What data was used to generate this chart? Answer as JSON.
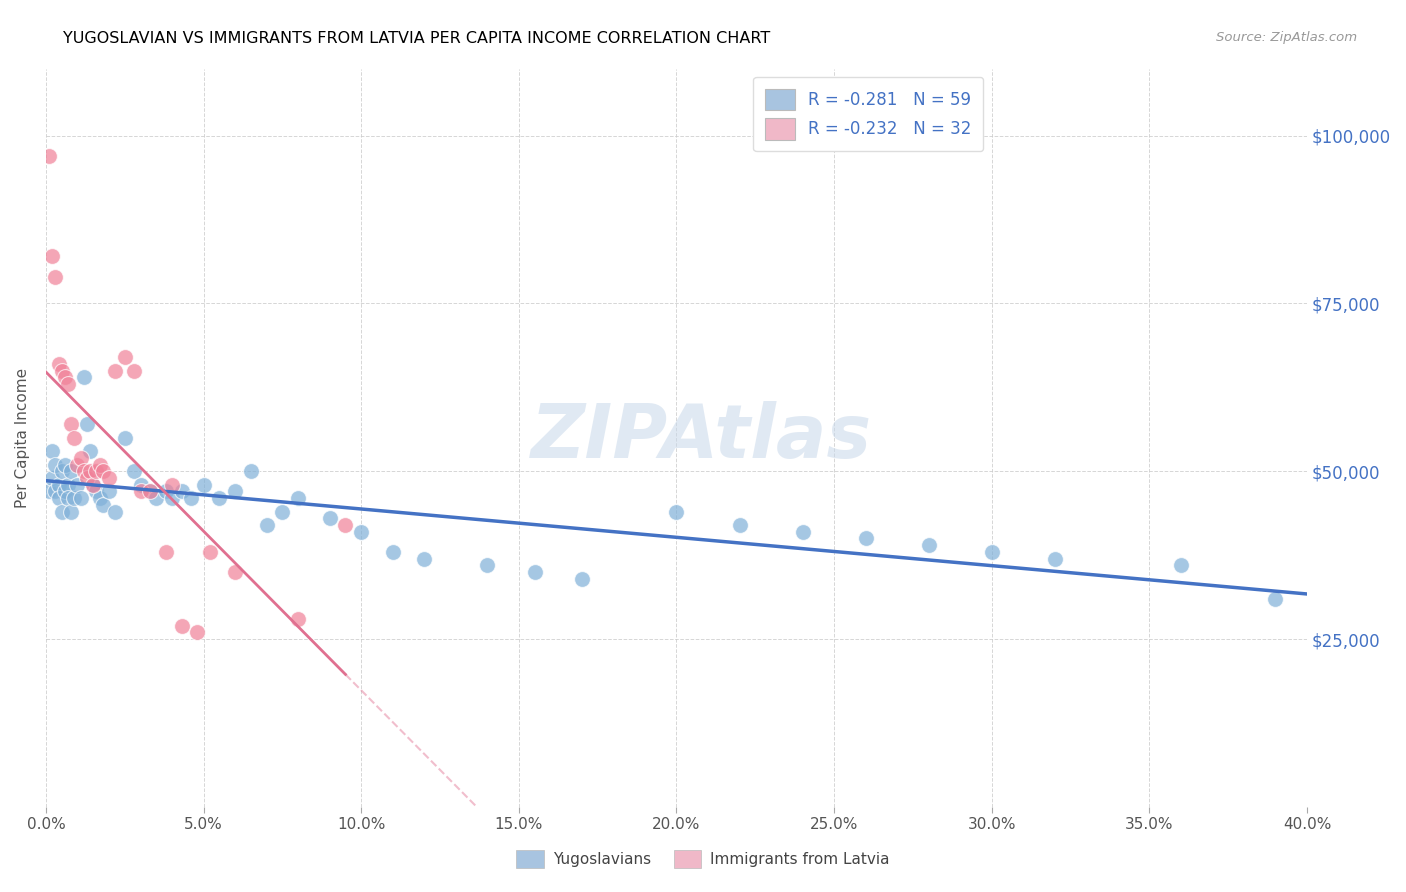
{
  "title": "YUGOSLAVIAN VS IMMIGRANTS FROM LATVIA PER CAPITA INCOME CORRELATION CHART",
  "source": "Source: ZipAtlas.com",
  "ylabel": "Per Capita Income",
  "yticks": [
    25000,
    50000,
    75000,
    100000
  ],
  "ytick_labels": [
    "$25,000",
    "$50,000",
    "$75,000",
    "$100,000"
  ],
  "xmin": 0.0,
  "xmax": 0.4,
  "ymin": 0,
  "ymax": 110000,
  "watermark": "ZIPAtlas",
  "legend_label1": "R = -0.281   N = 59",
  "legend_label2": "R = -0.232   N = 32",
  "series1_color": "#7fb0d8",
  "series2_color": "#f08098",
  "series1_legend_color": "#a8c4e0",
  "series2_legend_color": "#f0b8c8",
  "trend1_color": "#4472c4",
  "trend2_color": "#e07090",
  "footer_label1": "Yugoslavians",
  "footer_label2": "Immigrants from Latvia",
  "xtick_count": 9,
  "yugoslavian_x": [
    0.001,
    0.002,
    0.002,
    0.003,
    0.003,
    0.004,
    0.004,
    0.005,
    0.005,
    0.006,
    0.006,
    0.007,
    0.007,
    0.008,
    0.008,
    0.009,
    0.01,
    0.011,
    0.012,
    0.013,
    0.014,
    0.015,
    0.016,
    0.017,
    0.018,
    0.02,
    0.022,
    0.025,
    0.028,
    0.03,
    0.033,
    0.035,
    0.038,
    0.04,
    0.043,
    0.046,
    0.05,
    0.055,
    0.06,
    0.065,
    0.07,
    0.075,
    0.08,
    0.09,
    0.1,
    0.11,
    0.12,
    0.14,
    0.155,
    0.17,
    0.2,
    0.22,
    0.24,
    0.26,
    0.28,
    0.3,
    0.32,
    0.36,
    0.39
  ],
  "yugoslavian_y": [
    47000,
    49000,
    53000,
    51000,
    47000,
    48000,
    46000,
    50000,
    44000,
    47000,
    51000,
    48000,
    46000,
    44000,
    50000,
    46000,
    48000,
    46000,
    64000,
    57000,
    53000,
    48000,
    47000,
    46000,
    45000,
    47000,
    44000,
    55000,
    50000,
    48000,
    47000,
    46000,
    47000,
    46000,
    47000,
    46000,
    48000,
    46000,
    47000,
    50000,
    42000,
    44000,
    46000,
    43000,
    41000,
    38000,
    37000,
    36000,
    35000,
    34000,
    44000,
    42000,
    41000,
    40000,
    39000,
    38000,
    37000,
    36000,
    31000
  ],
  "latvia_x": [
    0.001,
    0.002,
    0.003,
    0.004,
    0.005,
    0.006,
    0.007,
    0.008,
    0.009,
    0.01,
    0.011,
    0.012,
    0.013,
    0.014,
    0.015,
    0.016,
    0.017,
    0.018,
    0.02,
    0.022,
    0.025,
    0.028,
    0.03,
    0.033,
    0.038,
    0.04,
    0.043,
    0.048,
    0.052,
    0.06,
    0.08,
    0.095
  ],
  "latvia_y": [
    97000,
    82000,
    79000,
    66000,
    65000,
    64000,
    63000,
    57000,
    55000,
    51000,
    52000,
    50000,
    49000,
    50000,
    48000,
    50000,
    51000,
    50000,
    49000,
    65000,
    67000,
    65000,
    47000,
    47000,
    38000,
    48000,
    27000,
    26000,
    38000,
    35000,
    28000,
    42000
  ]
}
